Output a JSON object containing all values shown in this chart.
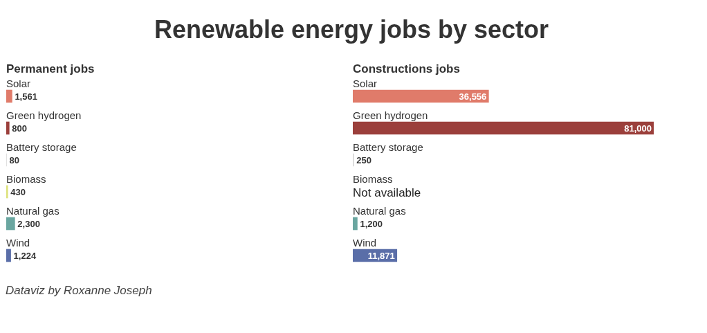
{
  "chart_data": [
    {
      "type": "other",
      "title": "Renewable energy jobs by sector"
    },
    {
      "type": "bar",
      "orientation": "horizontal",
      "subtitle": "Permanent jobs",
      "categories": [
        "Solar",
        "Green hydrogen",
        "Battery storage",
        "Biomass",
        "Natural gas",
        "Wind"
      ],
      "values": [
        1561,
        800,
        80,
        430,
        2300,
        1224
      ],
      "value_labels": [
        "1,561",
        "800",
        "80",
        "430",
        "2,300",
        "1,224"
      ],
      "colors": [
        "#e07b6a",
        "#9b3f3b",
        "#d6d6d6",
        "#dde27c",
        "#6aa6a0",
        "#5a6ea8"
      ],
      "annotations": [
        "Dataviz by Roxanne Joseph"
      ]
    },
    {
      "type": "bar",
      "orientation": "horizontal",
      "subtitle": "Constructions jobs",
      "categories": [
        "Solar",
        "Green hydrogen",
        "Battery storage",
        "Biomass",
        "Natural gas",
        "Wind"
      ],
      "values": [
        36556,
        81000,
        250,
        null,
        1200,
        11871
      ],
      "value_labels": [
        "36,556",
        "81,000",
        "250",
        "Not available",
        "1,200",
        "11,871"
      ],
      "colors": [
        "#e07b6a",
        "#9b3f3b",
        "#d6d6d6",
        "#dde27c",
        "#6aa6a0",
        "#5a6ea8"
      ]
    }
  ]
}
